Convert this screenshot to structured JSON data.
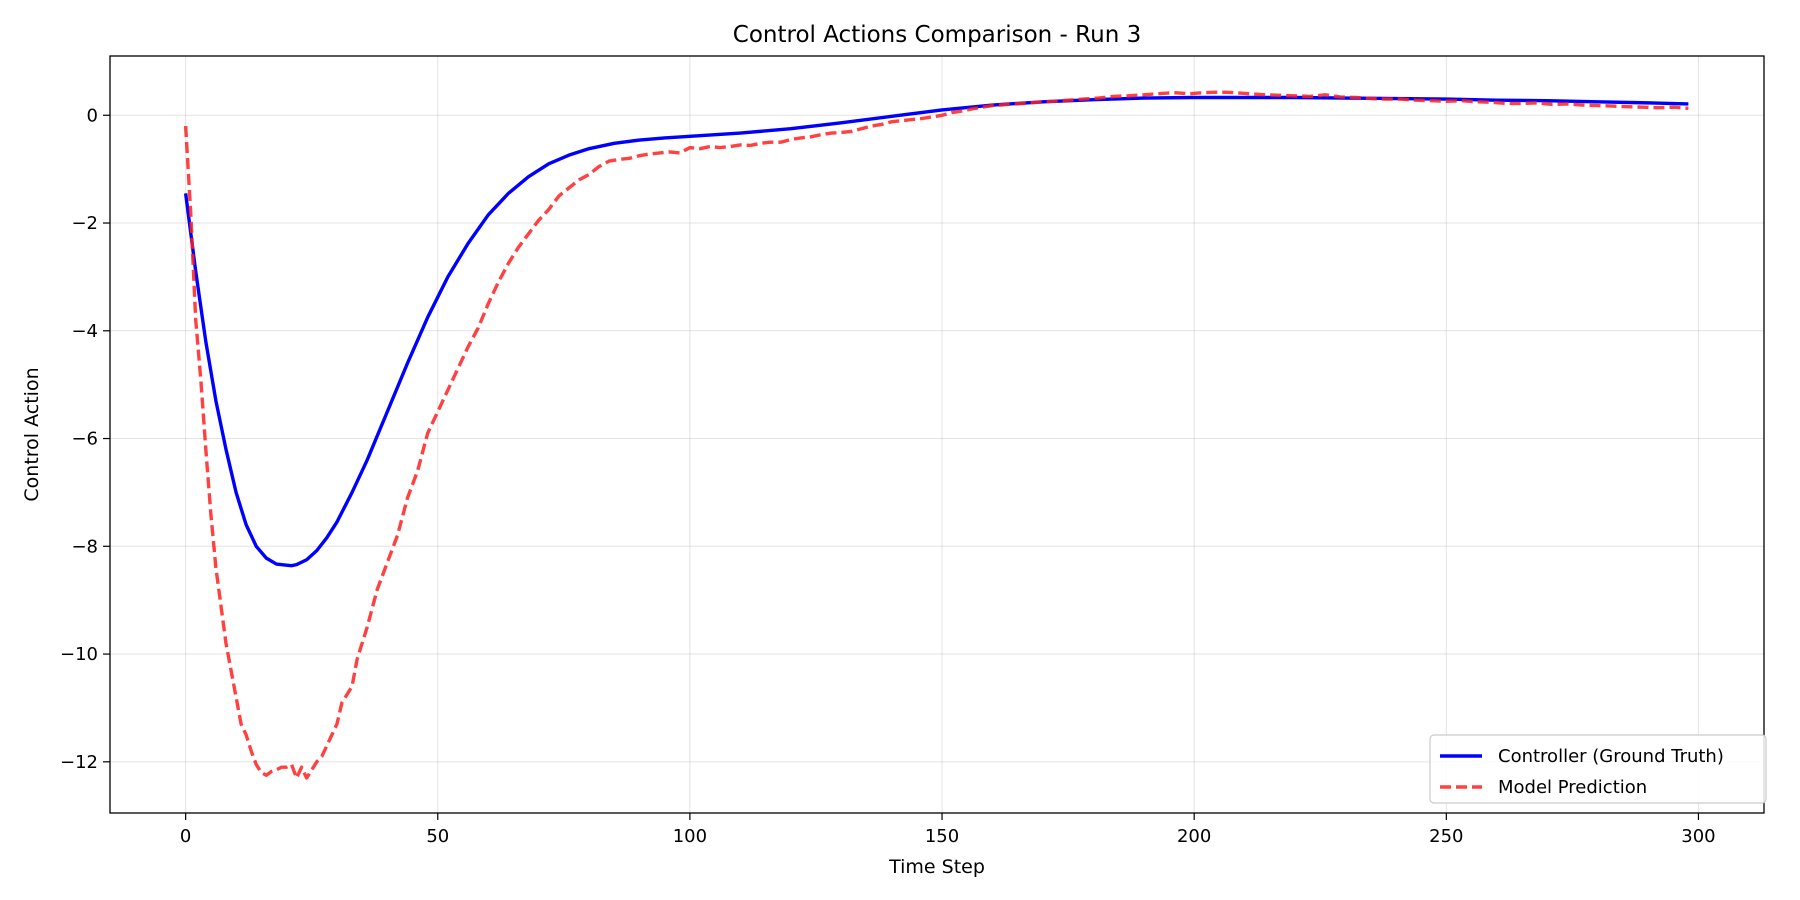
{
  "chart_data": {
    "type": "line",
    "title": "Control Actions Comparison - Run 3",
    "xlabel": "Time Step",
    "ylabel": "Control Action",
    "xlim": [
      -15,
      313
    ],
    "ylim": [
      -12.95,
      1.1
    ],
    "xticks": [
      0,
      50,
      100,
      150,
      200,
      250,
      300
    ],
    "yticks": [
      0,
      -2,
      -4,
      -6,
      -8,
      -10,
      -12
    ],
    "grid": true,
    "legend_position": "bottom-right",
    "series": [
      {
        "name": "Controller (Ground Truth)",
        "color": "#0000ff",
        "style": "solid",
        "x": [
          0,
          2,
          4,
          6,
          8,
          10,
          12,
          14,
          16,
          18,
          20,
          21,
          22,
          24,
          26,
          28,
          30,
          33,
          36,
          40,
          44,
          48,
          52,
          56,
          60,
          64,
          68,
          72,
          76,
          80,
          85,
          90,
          95,
          100,
          110,
          120,
          130,
          140,
          150,
          160,
          170,
          180,
          190,
          200,
          210,
          220,
          230,
          240,
          250,
          260,
          270,
          280,
          290,
          298
        ],
        "y": [
          -1.45,
          -2.9,
          -4.2,
          -5.3,
          -6.2,
          -7.0,
          -7.6,
          -8.0,
          -8.22,
          -8.33,
          -8.35,
          -8.36,
          -8.34,
          -8.25,
          -8.08,
          -7.84,
          -7.55,
          -7.0,
          -6.4,
          -5.5,
          -4.6,
          -3.75,
          -3.0,
          -2.38,
          -1.85,
          -1.45,
          -1.14,
          -0.9,
          -0.74,
          -0.62,
          -0.52,
          -0.46,
          -0.42,
          -0.39,
          -0.33,
          -0.25,
          -0.14,
          -0.02,
          0.1,
          0.19,
          0.25,
          0.29,
          0.32,
          0.33,
          0.33,
          0.33,
          0.32,
          0.31,
          0.3,
          0.28,
          0.27,
          0.25,
          0.23,
          0.21
        ]
      },
      {
        "name": "Model Prediction",
        "color": "#ff2020",
        "style": "dashed",
        "x": [
          0,
          1,
          2,
          3,
          4,
          5,
          6,
          7,
          8,
          9,
          10,
          11,
          12,
          13,
          14,
          15,
          16,
          17,
          18,
          19,
          20,
          21,
          22,
          23,
          24,
          25,
          26,
          27,
          28,
          29,
          30,
          31,
          32,
          33,
          34,
          35,
          36,
          38,
          40,
          42,
          44,
          46,
          48,
          50,
          52,
          54,
          56,
          58,
          60,
          62,
          64,
          66,
          68,
          70,
          72,
          74,
          76,
          78,
          80,
          82,
          84,
          86,
          88,
          90,
          92,
          94,
          96,
          98,
          100,
          102,
          104,
          106,
          108,
          110,
          112,
          114,
          116,
          118,
          120,
          122,
          124,
          126,
          128,
          130,
          132,
          134,
          136,
          138,
          140,
          142,
          144,
          146,
          148,
          150,
          152,
          154,
          156,
          158,
          160,
          163,
          166,
          169,
          172,
          175,
          178,
          181,
          184,
          187,
          190,
          193,
          196,
          199,
          202,
          205,
          208,
          211,
          214,
          217,
          220,
          223,
          226,
          229,
          232,
          235,
          238,
          241,
          244,
          247,
          250,
          253,
          256,
          259,
          262,
          265,
          268,
          271,
          274,
          277,
          280,
          283,
          286,
          289,
          292,
          295,
          298
        ],
        "y": [
          -0.2,
          -1.8,
          -3.8,
          -4.9,
          -6.2,
          -7.4,
          -8.4,
          -9.1,
          -9.8,
          -10.3,
          -10.8,
          -11.3,
          -11.5,
          -11.8,
          -12.05,
          -12.2,
          -12.25,
          -12.18,
          -12.15,
          -12.1,
          -12.1,
          -12.05,
          -12.3,
          -12.1,
          -12.3,
          -12.15,
          -12.0,
          -11.9,
          -11.7,
          -11.5,
          -11.3,
          -10.9,
          -10.75,
          -10.6,
          -10.1,
          -9.8,
          -9.5,
          -8.8,
          -8.3,
          -7.8,
          -7.1,
          -6.6,
          -5.9,
          -5.5,
          -5.1,
          -4.7,
          -4.3,
          -3.95,
          -3.5,
          -3.1,
          -2.75,
          -2.45,
          -2.2,
          -1.95,
          -1.75,
          -1.5,
          -1.35,
          -1.2,
          -1.1,
          -0.95,
          -0.85,
          -0.82,
          -0.8,
          -0.75,
          -0.72,
          -0.7,
          -0.68,
          -0.7,
          -0.6,
          -0.62,
          -0.58,
          -0.6,
          -0.58,
          -0.55,
          -0.56,
          -0.52,
          -0.5,
          -0.5,
          -0.45,
          -0.42,
          -0.4,
          -0.36,
          -0.33,
          -0.32,
          -0.3,
          -0.25,
          -0.2,
          -0.17,
          -0.12,
          -0.1,
          -0.08,
          -0.06,
          -0.03,
          0.0,
          0.05,
          0.08,
          0.12,
          0.15,
          0.18,
          0.2,
          0.22,
          0.24,
          0.26,
          0.28,
          0.3,
          0.32,
          0.35,
          0.36,
          0.38,
          0.4,
          0.42,
          0.4,
          0.42,
          0.43,
          0.42,
          0.4,
          0.38,
          0.37,
          0.36,
          0.35,
          0.38,
          0.34,
          0.33,
          0.31,
          0.3,
          0.3,
          0.28,
          0.27,
          0.26,
          0.27,
          0.25,
          0.24,
          0.22,
          0.22,
          0.23,
          0.2,
          0.21,
          0.19,
          0.18,
          0.17,
          0.16,
          0.15,
          0.14,
          0.15,
          0.13
        ]
      }
    ]
  }
}
